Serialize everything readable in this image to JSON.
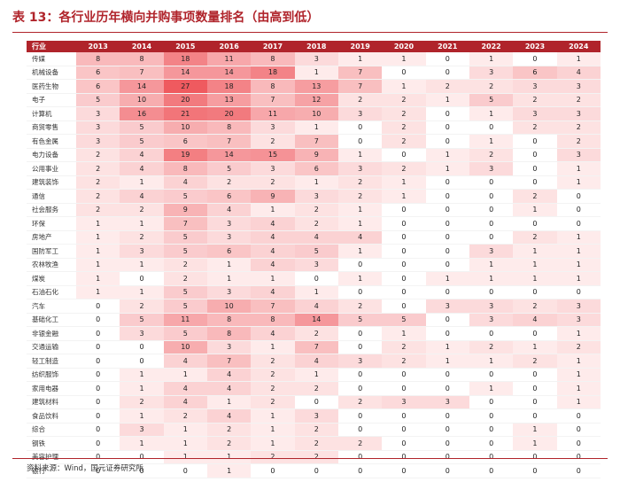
{
  "title": "表 13：各行业历年横向并购事项数量排名（由高到低）",
  "source": "资料来源：Wind，国元证券研究所",
  "table": {
    "header_industry": "行业",
    "years": [
      "2013",
      "2014",
      "2015",
      "2016",
      "2017",
      "2018",
      "2019",
      "2020",
      "2021",
      "2022",
      "2023",
      "2024"
    ],
    "rows": [
      {
        "name": "传媒",
        "values": [
          8,
          8,
          18,
          11,
          8,
          3,
          1,
          1,
          0,
          1,
          0,
          1
        ]
      },
      {
        "name": "机械设备",
        "values": [
          6,
          7,
          14,
          14,
          18,
          1,
          7,
          0,
          0,
          3,
          6,
          4
        ]
      },
      {
        "name": "医药生物",
        "values": [
          6,
          14,
          27,
          18,
          8,
          13,
          7,
          1,
          2,
          2,
          3,
          3
        ]
      },
      {
        "name": "电子",
        "values": [
          5,
          10,
          20,
          13,
          7,
          12,
          2,
          2,
          1,
          5,
          2,
          2
        ]
      },
      {
        "name": "计算机",
        "values": [
          3,
          16,
          21,
          20,
          11,
          10,
          3,
          2,
          0,
          1,
          3,
          3
        ]
      },
      {
        "name": "商贸零售",
        "values": [
          3,
          5,
          10,
          8,
          3,
          1,
          0,
          2,
          0,
          0,
          2,
          2
        ]
      },
      {
        "name": "有色金属",
        "values": [
          3,
          5,
          6,
          7,
          2,
          7,
          0,
          2,
          0,
          1,
          0,
          2
        ]
      },
      {
        "name": "电力设备",
        "values": [
          2,
          4,
          19,
          14,
          15,
          9,
          1,
          0,
          1,
          2,
          0,
          3
        ]
      },
      {
        "name": "公用事业",
        "values": [
          2,
          4,
          8,
          5,
          3,
          6,
          3,
          2,
          1,
          3,
          0,
          1
        ]
      },
      {
        "name": "建筑装饰",
        "values": [
          2,
          1,
          4,
          2,
          2,
          1,
          2,
          1,
          0,
          0,
          0,
          1
        ]
      },
      {
        "name": "通信",
        "values": [
          2,
          4,
          5,
          6,
          9,
          3,
          2,
          1,
          0,
          0,
          2,
          0
        ]
      },
      {
        "name": "社会服务",
        "values": [
          2,
          2,
          9,
          4,
          1,
          2,
          1,
          0,
          0,
          0,
          1,
          0
        ]
      },
      {
        "name": "环保",
        "values": [
          1,
          1,
          7,
          3,
          4,
          2,
          1,
          0,
          0,
          0,
          0,
          0
        ]
      },
      {
        "name": "房地产",
        "values": [
          1,
          2,
          5,
          3,
          4,
          4,
          4,
          0,
          0,
          0,
          2,
          1
        ]
      },
      {
        "name": "国防军工",
        "values": [
          1,
          3,
          5,
          6,
          4,
          5,
          1,
          0,
          0,
          3,
          1,
          1
        ]
      },
      {
        "name": "农林牧渔",
        "values": [
          1,
          1,
          2,
          1,
          4,
          3,
          0,
          0,
          0,
          1,
          1,
          1
        ]
      },
      {
        "name": "煤炭",
        "values": [
          1,
          0,
          2,
          1,
          1,
          0,
          1,
          0,
          1,
          1,
          1,
          1
        ]
      },
      {
        "name": "石油石化",
        "values": [
          1,
          1,
          5,
          3,
          4,
          1,
          0,
          0,
          0,
          0,
          0,
          0
        ]
      },
      {
        "name": "汽车",
        "values": [
          0,
          2,
          5,
          10,
          7,
          4,
          2,
          0,
          3,
          3,
          2,
          3
        ]
      },
      {
        "name": "基础化工",
        "values": [
          0,
          5,
          11,
          8,
          8,
          14,
          5,
          5,
          0,
          3,
          4,
          3
        ]
      },
      {
        "name": "非银金融",
        "values": [
          0,
          3,
          5,
          8,
          4,
          2,
          0,
          1,
          0,
          0,
          0,
          1
        ]
      },
      {
        "name": "交通运输",
        "values": [
          0,
          0,
          10,
          3,
          1,
          7,
          0,
          2,
          1,
          2,
          1,
          2
        ]
      },
      {
        "name": "轻工制造",
        "values": [
          0,
          0,
          4,
          7,
          2,
          4,
          3,
          2,
          1,
          1,
          2,
          1
        ]
      },
      {
        "name": "纺织服饰",
        "values": [
          0,
          1,
          1,
          4,
          2,
          1,
          0,
          0,
          0,
          0,
          0,
          1
        ]
      },
      {
        "name": "家用电器",
        "values": [
          0,
          1,
          4,
          4,
          2,
          2,
          0,
          0,
          0,
          1,
          0,
          1
        ]
      },
      {
        "name": "建筑材料",
        "values": [
          0,
          2,
          4,
          1,
          2,
          0,
          2,
          3,
          3,
          0,
          0,
          1
        ]
      },
      {
        "name": "食品饮料",
        "values": [
          0,
          1,
          2,
          4,
          1,
          3,
          0,
          0,
          0,
          0,
          0,
          0
        ]
      },
      {
        "name": "综合",
        "values": [
          0,
          3,
          1,
          2,
          1,
          2,
          0,
          0,
          0,
          0,
          1,
          0
        ]
      },
      {
        "name": "钢铁",
        "values": [
          0,
          1,
          1,
          2,
          1,
          2,
          2,
          0,
          0,
          0,
          1,
          0
        ]
      },
      {
        "name": "美容护理",
        "values": [
          0,
          0,
          1,
          1,
          2,
          2,
          0,
          0,
          0,
          0,
          0,
          0
        ]
      },
      {
        "name": "银行",
        "values": [
          0,
          0,
          0,
          1,
          0,
          0,
          0,
          0,
          0,
          0,
          0,
          0
        ]
      }
    ]
  },
  "colors": {
    "accent": "#b0242b",
    "heat_max": "#ef5a5f",
    "heat_min": "#ffffff"
  }
}
